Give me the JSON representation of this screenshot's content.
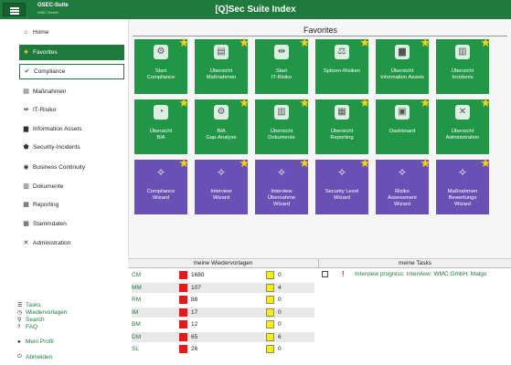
{
  "header": {
    "logo_title": "OSEC-Suite",
    "logo_subtitle": "WMC GmbH",
    "app_title": "[Q]Sec Suite Index"
  },
  "sidebar": {
    "items": [
      {
        "label": "Home",
        "icon": "home-icon"
      },
      {
        "label": "Favorites",
        "icon": "star-icon"
      },
      {
        "label": "Compliance",
        "icon": "check-circle-icon"
      },
      {
        "label": "Maßnahmen",
        "icon": "clipboard-icon"
      },
      {
        "label": "IT-Risiko",
        "icon": "network-icon"
      },
      {
        "label": "Information Assets",
        "icon": "server-icon"
      },
      {
        "label": "Security-Incidents",
        "icon": "shield-icon"
      },
      {
        "label": "Business Continuity",
        "icon": "globe-icon"
      },
      {
        "label": "Dokumente",
        "icon": "folder-icon"
      },
      {
        "label": "Reporting",
        "icon": "report-icon"
      },
      {
        "label": "Stammdaten",
        "icon": "table-icon"
      },
      {
        "label": "Administration",
        "icon": "tools-icon"
      }
    ],
    "bottom": [
      {
        "label": "Tasks",
        "icon": "list-icon"
      },
      {
        "label": "Wiedervorlagen",
        "icon": "clock-icon"
      },
      {
        "label": "Search",
        "icon": "search-icon"
      },
      {
        "label": "FAQ",
        "icon": "question-icon"
      },
      {
        "label": "Mein Profil",
        "icon": "user-icon"
      },
      {
        "label": "Abmelden",
        "icon": "logout-icon"
      }
    ]
  },
  "favorites": {
    "title": "Favorites",
    "tiles": [
      {
        "line1": "Start",
        "line2": "Compliance",
        "line3": "",
        "color": "green",
        "icon": "gears-icon"
      },
      {
        "line1": "Übersicht",
        "line2": "Maßnahmen",
        "line3": "",
        "color": "green",
        "icon": "clipboard-icon"
      },
      {
        "line1": "Start",
        "line2": "IT-Risiko",
        "line3": "",
        "color": "green",
        "icon": "network-icon"
      },
      {
        "line1": "Spitzen-Risiken",
        "line2": "",
        "line3": "",
        "color": "green",
        "icon": "balance-icon"
      },
      {
        "line1": "Übersicht",
        "line2": "Information Assets",
        "line3": "",
        "color": "green",
        "icon": "server-icon"
      },
      {
        "line1": "Übersicht",
        "line2": "Incidents",
        "line3": "",
        "color": "green",
        "icon": "document-icon"
      },
      {
        "line1": "Übersicht",
        "line2": "BIA",
        "line3": "",
        "color": "green",
        "icon": "chart-icon"
      },
      {
        "line1": "BIA",
        "line2": "Gap-Analyse",
        "line3": "",
        "color": "green",
        "icon": "gear-icon"
      },
      {
        "line1": "Übersicht",
        "line2": "Dokumente",
        "line3": "",
        "color": "green",
        "icon": "folder-icon"
      },
      {
        "line1": "Übersicht",
        "line2": "Reporting",
        "line3": "",
        "color": "green",
        "icon": "report-icon"
      },
      {
        "line1": "Dashboard",
        "line2": "",
        "line3": "",
        "color": "green",
        "icon": "dashboard-icon"
      },
      {
        "line1": "Übersicht",
        "line2": "Administration",
        "line3": "",
        "color": "green",
        "icon": "tools-icon"
      },
      {
        "line1": "Compliance",
        "line2": "Wizard",
        "line3": "",
        "color": "purple",
        "icon": "wand-icon"
      },
      {
        "line1": "Interview",
        "line2": "Wizard",
        "line3": "",
        "color": "purple",
        "icon": "wand-icon"
      },
      {
        "line1": "Interview",
        "line2": "Übernahme",
        "line3": "Wizard",
        "color": "purple",
        "icon": "wand-icon"
      },
      {
        "line1": "Security Level",
        "line2": "Wizard",
        "line3": "",
        "color": "purple",
        "icon": "wand-icon"
      },
      {
        "line1": "Risiko",
        "line2": "Assessment",
        "line3": "Wizard",
        "color": "purple",
        "icon": "wand-icon"
      },
      {
        "line1": "Maßnahmen",
        "line2": "Bewertungs",
        "line3": "Wizard",
        "color": "purple",
        "icon": "wand-icon"
      }
    ]
  },
  "templates": {
    "title": "meine Wiedervorlagen",
    "rows": [
      {
        "code": "CM",
        "red": "1680",
        "yellow": "0"
      },
      {
        "code": "MM",
        "red": "107",
        "yellow": "4"
      },
      {
        "code": "RM",
        "red": "88",
        "yellow": "0"
      },
      {
        "code": "IM",
        "red": "17",
        "yellow": "0"
      },
      {
        "code": "BM",
        "red": "12",
        "yellow": "0"
      },
      {
        "code": "DM",
        "red": "65",
        "yellow": "6"
      },
      {
        "code": "SL",
        "red": "26",
        "yellow": "0"
      }
    ]
  },
  "tasks": {
    "title": "meine Tasks",
    "items": [
      {
        "text": "Interview progress: Interview: WMC GmbH: Malgo"
      }
    ]
  },
  "colors": {
    "brand_green": "#1f7a3e",
    "tile_green": "#209646",
    "tile_purple": "#6a50b5",
    "star_yellow": "#f4d01a",
    "alert_red": "#e01b1b"
  }
}
